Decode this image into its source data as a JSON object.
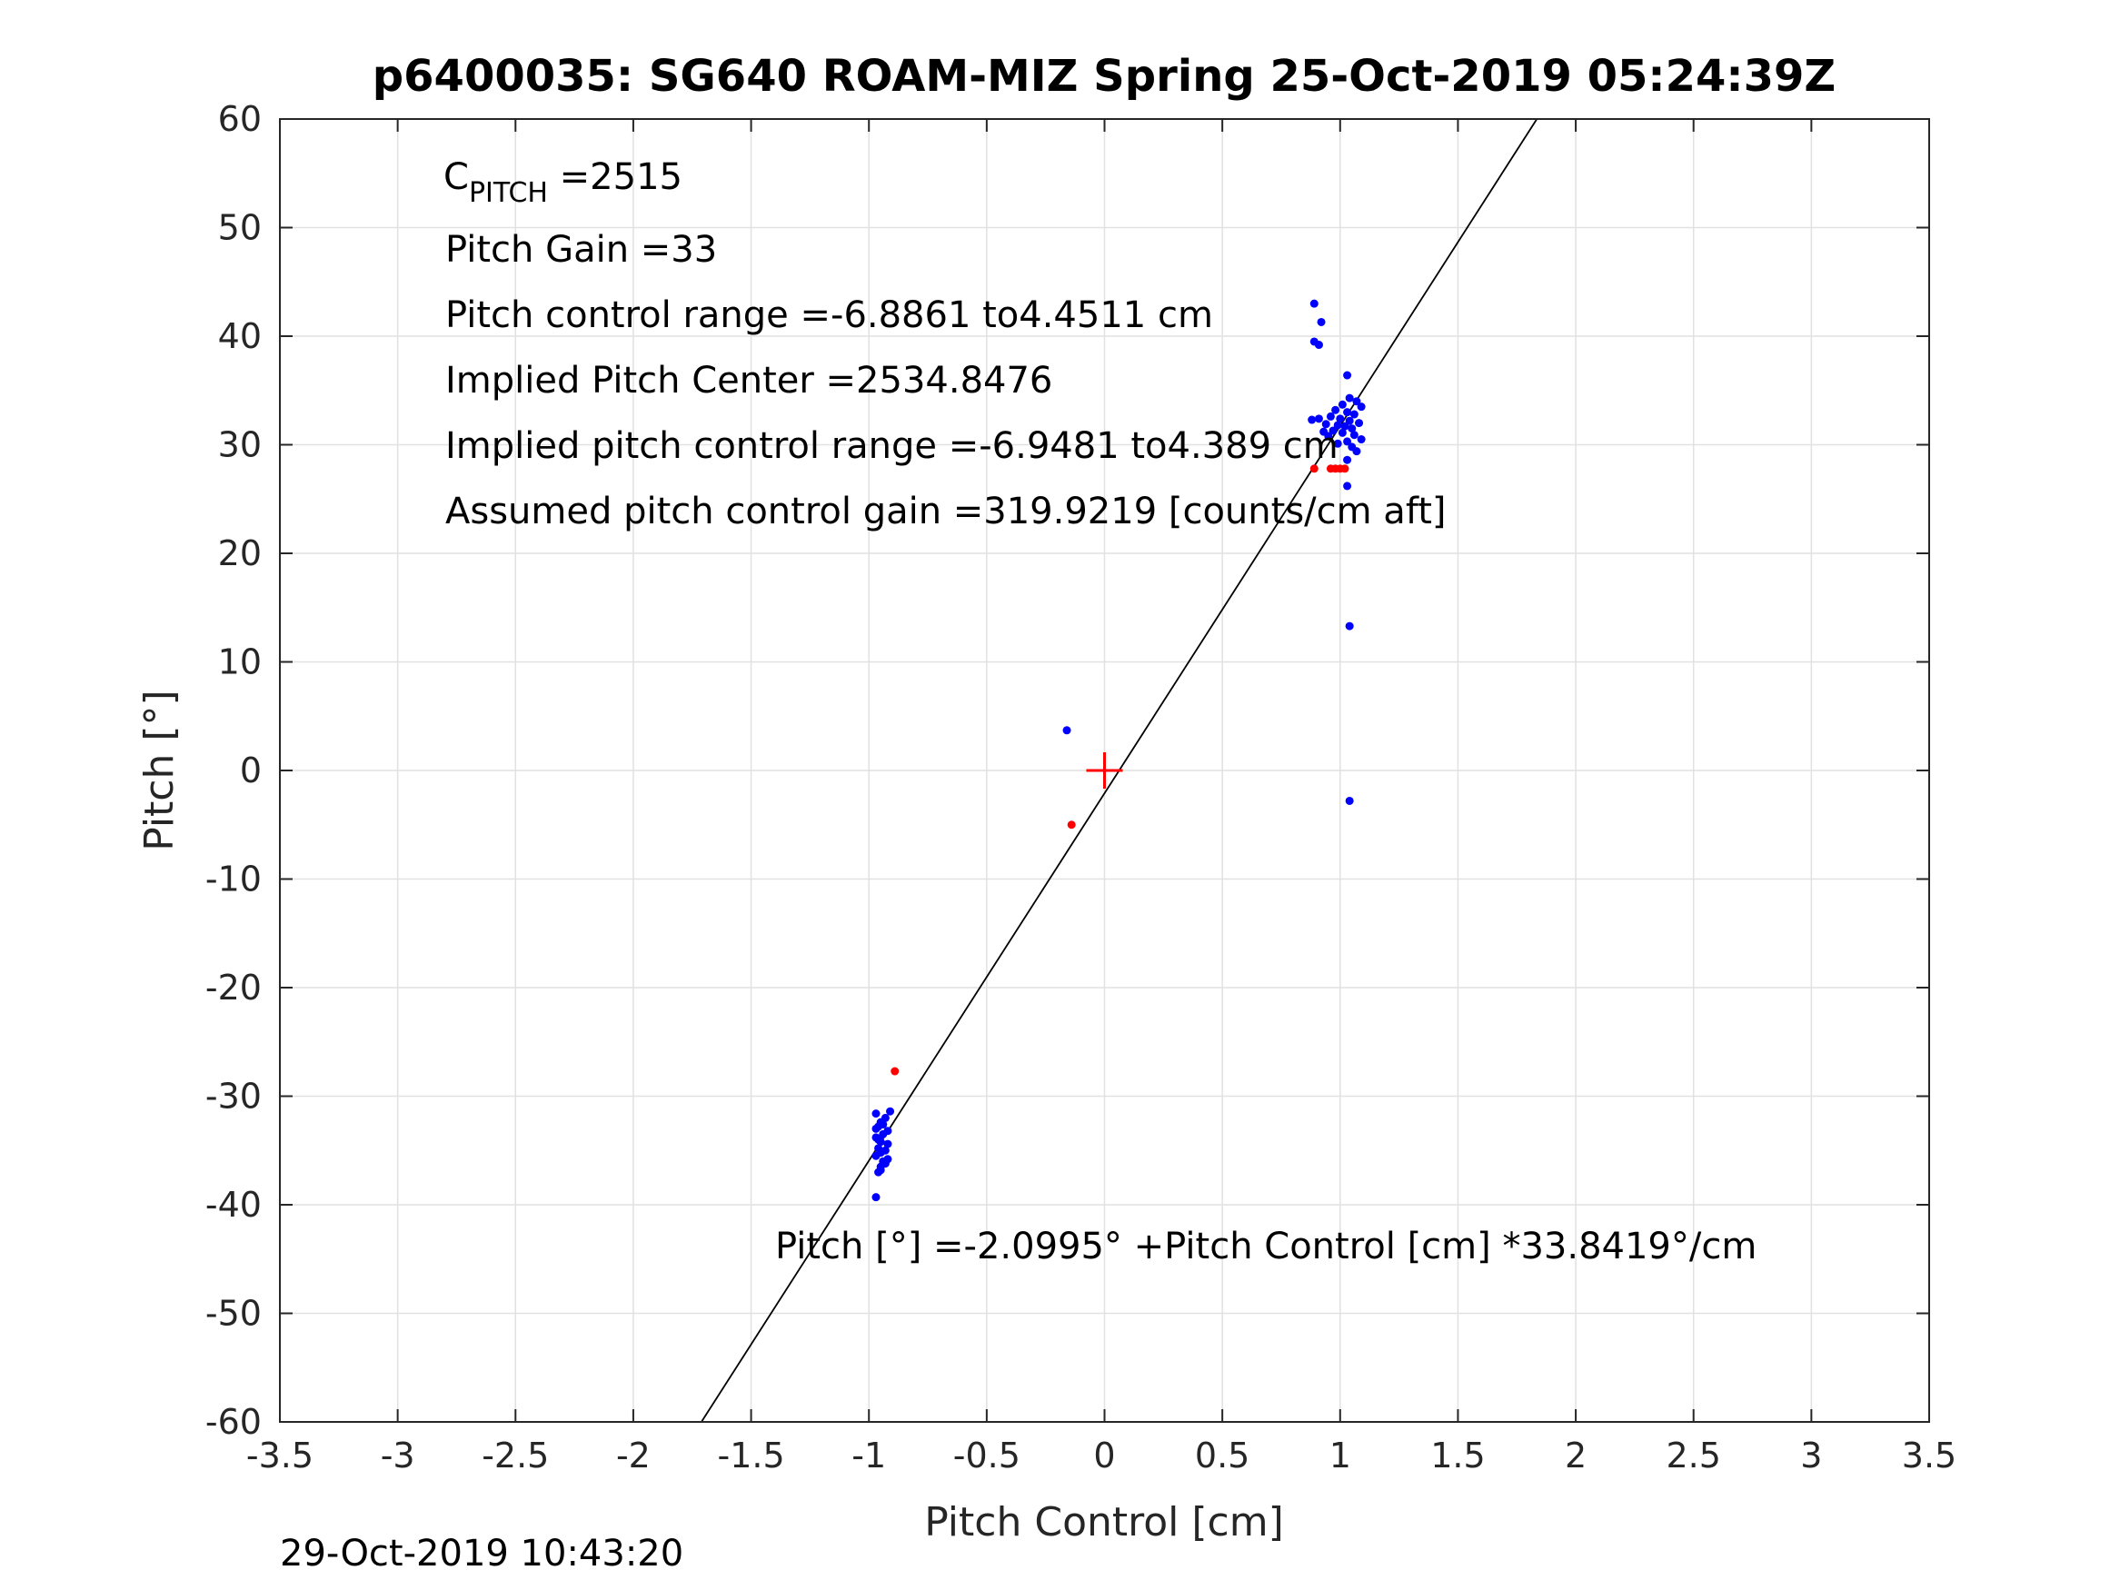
{
  "chart_data": {
    "type": "scatter",
    "title": "p6400035: SG640 ROAM-MIZ Spring 25-Oct-2019 05:24:39Z",
    "xlabel": "Pitch Control [cm]",
    "ylabel": "Pitch [°]",
    "xlim": [
      -3.5,
      3.5
    ],
    "ylim": [
      -60,
      60
    ],
    "xticks": [
      -3.5,
      -3,
      -2.5,
      -2,
      -1.5,
      -1,
      -0.5,
      0,
      0.5,
      1,
      1.5,
      2,
      2.5,
      3,
      3.5
    ],
    "yticks": [
      -60,
      -50,
      -40,
      -30,
      -20,
      -10,
      0,
      10,
      20,
      30,
      40,
      50,
      60
    ],
    "grid": true,
    "annotations": {
      "c_pitch_letter": "C",
      "c_pitch_sub": "PITCH",
      "c_pitch_value": " =2515",
      "pitch_gain": "Pitch Gain =33",
      "pitch_control_range": "Pitch control range =-6.8861 to4.4511 cm",
      "implied_pitch_center": "Implied Pitch Center =2534.8476",
      "implied_pitch_control_range": "Implied pitch control range =-6.9481 to4.389 cm",
      "assumed_gain": "Assumed pitch control gain =319.9219 [counts/cm aft]",
      "fit_equation": "Pitch [°] =-2.0995° +Pitch Control [cm] *33.8419°/cm"
    },
    "fit_line": {
      "intercept": -2.0995,
      "slope": 33.8419,
      "color": "#000000"
    },
    "center_marker": {
      "x": 0,
      "y": 0,
      "color": "#ff0000"
    },
    "series": [
      {
        "color": "#0000ff",
        "points": [
          [
            -0.97,
            -39.3
          ],
          [
            -0.96,
            -37.0
          ],
          [
            -0.95,
            -36.5
          ],
          [
            -0.94,
            -36.0
          ],
          [
            -0.97,
            -35.5
          ],
          [
            -0.93,
            -35.0
          ],
          [
            -0.96,
            -34.8
          ],
          [
            -0.95,
            -34.2
          ],
          [
            -0.97,
            -33.8
          ],
          [
            -0.94,
            -33.5
          ],
          [
            -0.92,
            -33.2
          ],
          [
            -0.96,
            -32.8
          ],
          [
            -0.95,
            -32.4
          ],
          [
            -0.93,
            -32.0
          ],
          [
            -0.97,
            -31.6
          ],
          [
            -0.91,
            -31.4
          ],
          [
            -0.95,
            -36.8
          ],
          [
            -0.92,
            -35.8
          ],
          [
            -0.96,
            -34.0
          ],
          [
            -0.94,
            -32.6
          ],
          [
            -0.93,
            -36.2
          ],
          [
            -0.97,
            -33.0
          ],
          [
            -0.95,
            -35.2
          ],
          [
            -0.92,
            -34.4
          ],
          [
            0.89,
            43.0
          ],
          [
            0.92,
            41.3
          ],
          [
            0.89,
            39.5
          ],
          [
            0.91,
            39.2
          ],
          [
            1.03,
            36.4
          ],
          [
            1.04,
            34.3
          ],
          [
            1.07,
            34.0
          ],
          [
            1.01,
            33.7
          ],
          [
            1.09,
            33.5
          ],
          [
            0.98,
            33.2
          ],
          [
            1.03,
            33.0
          ],
          [
            1.06,
            32.8
          ],
          [
            0.96,
            32.6
          ],
          [
            1.0,
            32.4
          ],
          [
            1.04,
            32.2
          ],
          [
            1.08,
            32.0
          ],
          [
            0.94,
            31.9
          ],
          [
            0.99,
            31.8
          ],
          [
            1.02,
            31.7
          ],
          [
            1.05,
            31.5
          ],
          [
            0.97,
            31.3
          ],
          [
            1.01,
            31.1
          ],
          [
            1.06,
            30.9
          ],
          [
            0.95,
            30.8
          ],
          [
            1.09,
            30.5
          ],
          [
            1.03,
            30.3
          ],
          [
            0.99,
            30.1
          ],
          [
            1.05,
            29.8
          ],
          [
            1.07,
            29.4
          ],
          [
            1.03,
            28.6
          ],
          [
            0.88,
            32.3
          ],
          [
            0.91,
            32.4
          ],
          [
            0.93,
            31.2
          ],
          [
            1.03,
            26.2
          ],
          [
            1.04,
            13.3
          ],
          [
            1.04,
            -2.8
          ],
          [
            -0.16,
            3.7
          ]
        ]
      },
      {
        "color": "#ff0000",
        "points": [
          [
            0.96,
            27.8
          ],
          [
            0.98,
            27.8
          ],
          [
            1.0,
            27.8
          ],
          [
            1.02,
            27.8
          ],
          [
            0.89,
            27.8
          ],
          [
            -0.89,
            -27.7
          ],
          [
            -0.14,
            -5.0
          ]
        ]
      }
    ]
  },
  "footer": {
    "timestamp": "29-Oct-2019 10:43:20"
  }
}
